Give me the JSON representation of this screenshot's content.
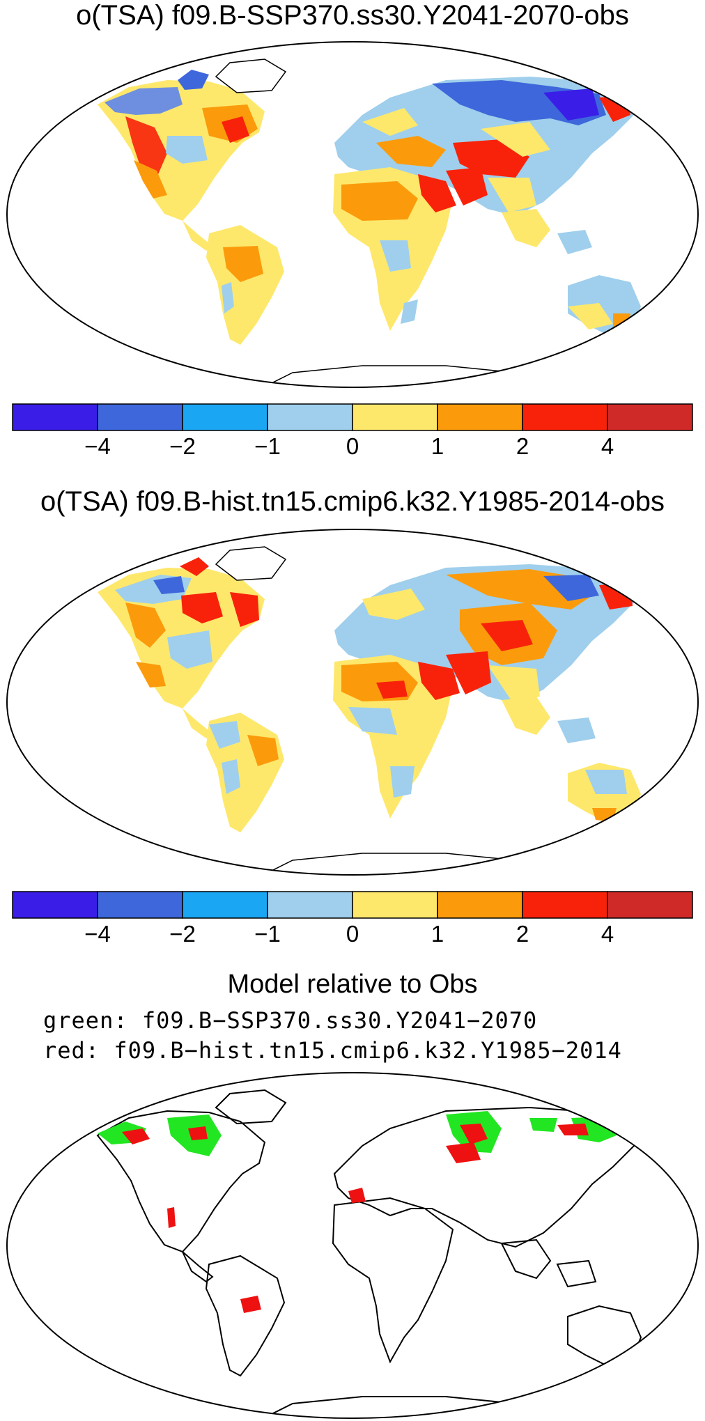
{
  "panels": [
    {
      "title": "o(TSA) f09.B-SSP370.ss30.Y2041-2070-obs",
      "colorbar": {
        "colors": [
          "#3a1ee8",
          "#3e67db",
          "#1aa6f2",
          "#9fcfec",
          "#fde86c",
          "#fb9b0c",
          "#f8220a",
          "#d02a28"
        ],
        "labels": [
          "−4",
          "−2",
          "−1",
          "0",
          "1",
          "2",
          "4"
        ]
      }
    },
    {
      "title": "o(TSA) f09.B-hist.tn15.cmip6.k32.Y1985-2014-obs",
      "colorbar": {
        "colors": [
          "#3a1ee8",
          "#3e67db",
          "#1aa6f2",
          "#9fcfec",
          "#fde86c",
          "#fb9b0c",
          "#f8220a",
          "#d02a28"
        ],
        "labels": [
          "−4",
          "−2",
          "−1",
          "0",
          "1",
          "2",
          "4"
        ]
      }
    }
  ],
  "comparison": {
    "title": "Model relative to Obs",
    "green_label": "green: f09.B−SSP370.ss30.Y2041−2070",
    "red_label": "red: f09.B−hist.tn15.cmip6.k32.Y1985−2014",
    "colors": {
      "green": "#22e622",
      "red": "#ee1111"
    }
  }
}
